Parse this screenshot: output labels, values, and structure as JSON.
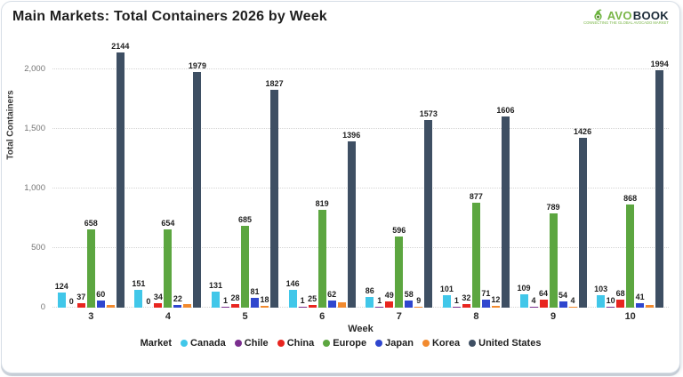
{
  "logo": {
    "brand_avo": "AVO",
    "brand_book": "BOOK",
    "tagline": "CONNECTING THE GLOBAL AVOCADO MARKET"
  },
  "chart_data": {
    "type": "bar",
    "title": "Main Markets: Total Containers 2026 by Week",
    "xlabel": "Week",
    "ylabel": "Total Containers",
    "ylim": [
      0,
      2200
    ],
    "yticks": [
      "0",
      "500",
      "1,000",
      "1,500",
      "2,000"
    ],
    "ytick_values": [
      0,
      500,
      1000,
      1500,
      2000
    ],
    "grid": "dotted-horizontal",
    "legend_title": "Market",
    "legend_position": "bottom",
    "categories": [
      "3",
      "4",
      "5",
      "6",
      "7",
      "8",
      "9",
      "10"
    ],
    "series": [
      {
        "name": "Canada",
        "color": "#41C7E9",
        "values": [
          124,
          151,
          131,
          146,
          86,
          101,
          109,
          103
        ],
        "labels": [
          "124",
          "151",
          "131",
          "146",
          "86",
          "101",
          "109",
          "103"
        ]
      },
      {
        "name": "Chile",
        "color": "#7A2E8E",
        "values": [
          0,
          0,
          1,
          1,
          1,
          1,
          4,
          10
        ],
        "labels": [
          "0",
          "0",
          "1",
          "1",
          "1",
          "1",
          "4",
          "10"
        ]
      },
      {
        "name": "China",
        "color": "#E8251F",
        "values": [
          37,
          34,
          28,
          25,
          49,
          32,
          64,
          68
        ],
        "labels": [
          "37",
          "34",
          "28",
          "25",
          "49",
          "32",
          "64",
          "68"
        ]
      },
      {
        "name": "Europe",
        "color": "#5CA640",
        "values": [
          658,
          654,
          685,
          819,
          596,
          877,
          789,
          868
        ],
        "labels": [
          "658",
          "654",
          "685",
          "819",
          "596",
          "877",
          "789",
          "868"
        ]
      },
      {
        "name": "Japan",
        "color": "#2F46CE",
        "values": [
          60,
          22,
          81,
          62,
          58,
          71,
          54,
          41
        ],
        "labels": [
          "60",
          "22",
          "81",
          "62",
          "58",
          "71",
          "54",
          "41"
        ]
      },
      {
        "name": "Korea",
        "color": "#F28A2E",
        "values": [
          20,
          30,
          18,
          45,
          9,
          12,
          4,
          25
        ],
        "labels": [
          "",
          "",
          "18",
          "",
          "9",
          "12",
          "4",
          ""
        ]
      },
      {
        "name": "United States",
        "color": "#3E4F63",
        "values": [
          2144,
          1979,
          1827,
          1396,
          1573,
          1606,
          1426,
          1994
        ],
        "labels": [
          "2144",
          "1979",
          "1827",
          "1396",
          "1573",
          "1606",
          "1426",
          "1994"
        ]
      }
    ]
  }
}
